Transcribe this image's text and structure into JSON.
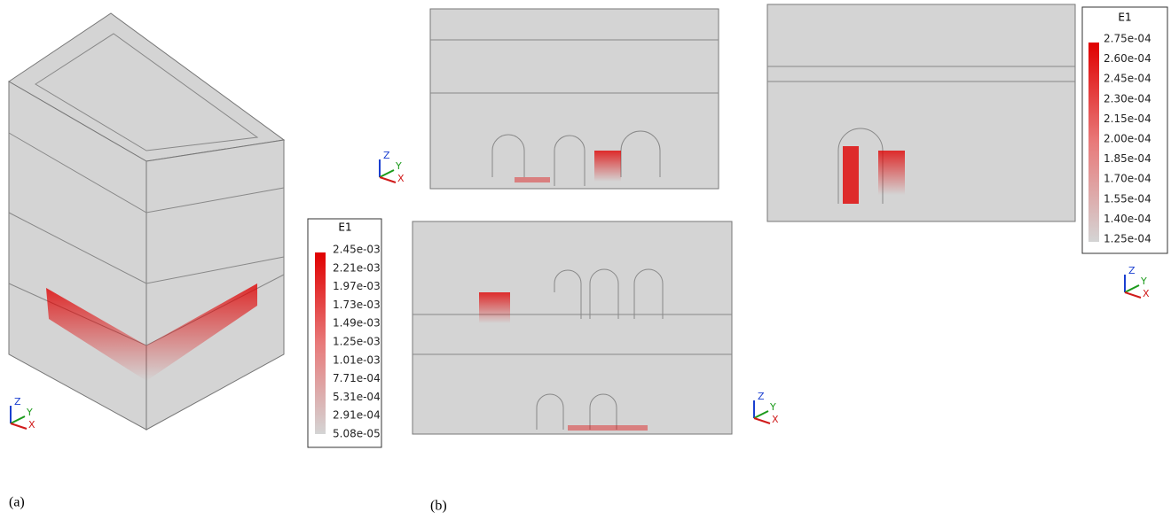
{
  "panels": [
    {
      "label": "(a)"
    },
    {
      "label": "(b)"
    }
  ],
  "legends": [
    {
      "title": "E1",
      "labels": [
        "2.45e-03",
        "2.21e-03",
        "1.97e-03",
        "1.73e-03",
        "1.49e-03",
        "1.25e-03",
        "1.01e-03",
        "7.71e-04",
        "5.31e-04",
        "2.91e-04",
        "5.08e-05"
      ]
    },
    {
      "title": "E1",
      "labels": [
        "2.75e-04",
        "2.60e-04",
        "2.45e-04",
        "2.30e-04",
        "2.15e-04",
        "2.00e-04",
        "1.85e-04",
        "1.70e-04",
        "1.55e-04",
        "1.40e-04",
        "1.25e-04"
      ]
    }
  ],
  "triads": [
    {
      "z": "Z",
      "y": "Y",
      "x": "X"
    },
    {
      "z": "Z",
      "y": "Y",
      "x": "X"
    },
    {
      "z": "Z",
      "y": "Y",
      "x": "X"
    },
    {
      "z": "Z",
      "y": "Y",
      "x": "X"
    }
  ]
}
